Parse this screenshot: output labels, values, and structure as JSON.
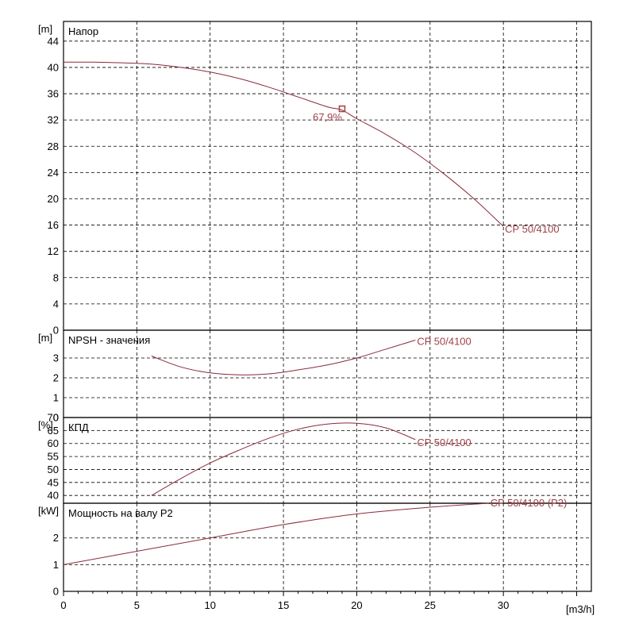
{
  "chart_data": [
    {
      "type": "line",
      "title": "Напор",
      "unit": "[m]",
      "ylim": [
        0,
        47
      ],
      "yticks": [
        0,
        4,
        8,
        12,
        16,
        20,
        24,
        28,
        32,
        36,
        40,
        44
      ],
      "series": [
        {
          "name": "CP 50/4100",
          "x": [
            0,
            2,
            4,
            6,
            8,
            10,
            12,
            14,
            16,
            18,
            19,
            20,
            22,
            24,
            26,
            28,
            30
          ],
          "values": [
            40.8,
            40.8,
            40.7,
            40.5,
            40.0,
            39.3,
            38.3,
            37.0,
            35.5,
            34.0,
            33.5,
            32.2,
            29.8,
            27.0,
            23.7,
            20.0,
            15.8
          ]
        }
      ],
      "point_marker": {
        "x": 19,
        "y": 33.7,
        "label": "67,9%"
      }
    },
    {
      "type": "line",
      "title": "NPSH - значения",
      "unit": "[m]",
      "ylim": [
        0,
        4.4
      ],
      "yticks": [
        0,
        1,
        2,
        3
      ],
      "series": [
        {
          "name": "CP 50/4100",
          "x": [
            6,
            8,
            10,
            12,
            14,
            16,
            18,
            20,
            22,
            24
          ],
          "values": [
            3.1,
            2.55,
            2.25,
            2.15,
            2.2,
            2.4,
            2.65,
            3.0,
            3.45,
            3.9
          ]
        }
      ]
    },
    {
      "type": "line",
      "title": "КПД",
      "unit": "[%]",
      "ylim": [
        37,
        70
      ],
      "yticks": [
        40,
        45,
        50,
        55,
        60,
        65,
        70
      ],
      "series": [
        {
          "name": "CP 50/4100",
          "x": [
            6,
            8,
            10,
            12,
            14,
            16,
            18,
            20,
            22,
            24
          ],
          "values": [
            40,
            46.5,
            52.5,
            57.5,
            62,
            65.5,
            67.5,
            67.8,
            66,
            61.5
          ]
        }
      ]
    },
    {
      "type": "line",
      "title": "Мощность на валу P2",
      "unit": "[kW]",
      "ylim": [
        0,
        3.3
      ],
      "yticks": [
        0,
        1,
        2
      ],
      "series": [
        {
          "name": "CP 50/4100 (P2)",
          "x": [
            0,
            5,
            10,
            15,
            20,
            25,
            29
          ],
          "values": [
            1.0,
            1.5,
            2.0,
            2.5,
            2.9,
            3.15,
            3.3
          ]
        }
      ]
    }
  ],
  "x_axis": {
    "xlim": [
      0,
      36
    ],
    "ticks": [
      0,
      5,
      10,
      15,
      20,
      25,
      30
    ],
    "unit": "[m3/h]"
  }
}
